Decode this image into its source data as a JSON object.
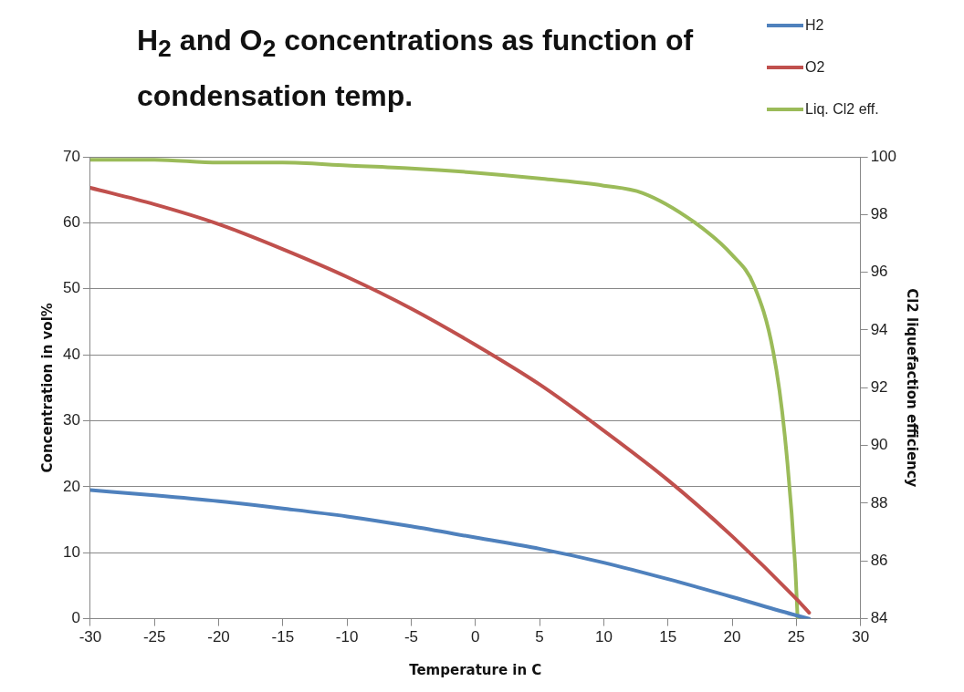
{
  "chart_data": {
    "type": "line",
    "title": "H$_{2}$ and O$_{2}$ concentrations as function of condensation temp.",
    "xlabel": "Temperature in C",
    "ylabel": "Concentration in vol%",
    "y2label": "Cl2 liquefaction efficiency",
    "xlim": [
      -30,
      30
    ],
    "xticks": [
      -30,
      -25,
      -20,
      -15,
      -10,
      -5,
      0,
      5,
      10,
      15,
      20,
      25,
      30
    ],
    "ylim": [
      0,
      70
    ],
    "yticks": [
      0,
      10,
      20,
      30,
      40,
      50,
      60,
      70
    ],
    "y2lim": [
      84,
      100
    ],
    "y2ticks": [
      84,
      86,
      88,
      90,
      92,
      94,
      96,
      98,
      100
    ],
    "grid": "y",
    "legend": "top right",
    "marker": "none",
    "line_style": "solid",
    "series": [
      {
        "name": "H2",
        "color": "#4f81bd",
        "x": [
          -30,
          -25,
          -20,
          -15,
          -10,
          -5,
          0,
          5,
          10,
          15,
          20,
          25,
          26
        ],
        "values": [
          19.5,
          18.7,
          17.8,
          16.7,
          15.5,
          14.0,
          12.3,
          10.6,
          8.5,
          6.0,
          3.3,
          0.5,
          0
        ]
      },
      {
        "name": "O2",
        "color": "#c0504d",
        "x": [
          -30,
          -25,
          -20,
          -15,
          -10,
          -5,
          0,
          5,
          10,
          15,
          20,
          25,
          26
        ],
        "values": [
          65.3,
          62.8,
          59.8,
          56.0,
          51.8,
          47.0,
          41.5,
          35.5,
          28.5,
          21.0,
          12.5,
          3.0,
          0.9
        ]
      },
      {
        "name": "Liq. Cl2 eff.",
        "color": "#9bbb59",
        "axis": "y2",
        "x": [
          -30,
          -25,
          -20,
          -15,
          -10,
          -5,
          0,
          5,
          10,
          13,
          17,
          20,
          21.7,
          23.2,
          24.1,
          24.9,
          25.1
        ],
        "values": [
          99.9,
          99.9,
          99.8,
          99.8,
          99.7,
          99.6,
          99.45,
          99.25,
          99.0,
          98.75,
          97.75,
          96.6,
          95.55,
          93.25,
          90.35,
          85.9,
          84
        ]
      }
    ]
  }
}
